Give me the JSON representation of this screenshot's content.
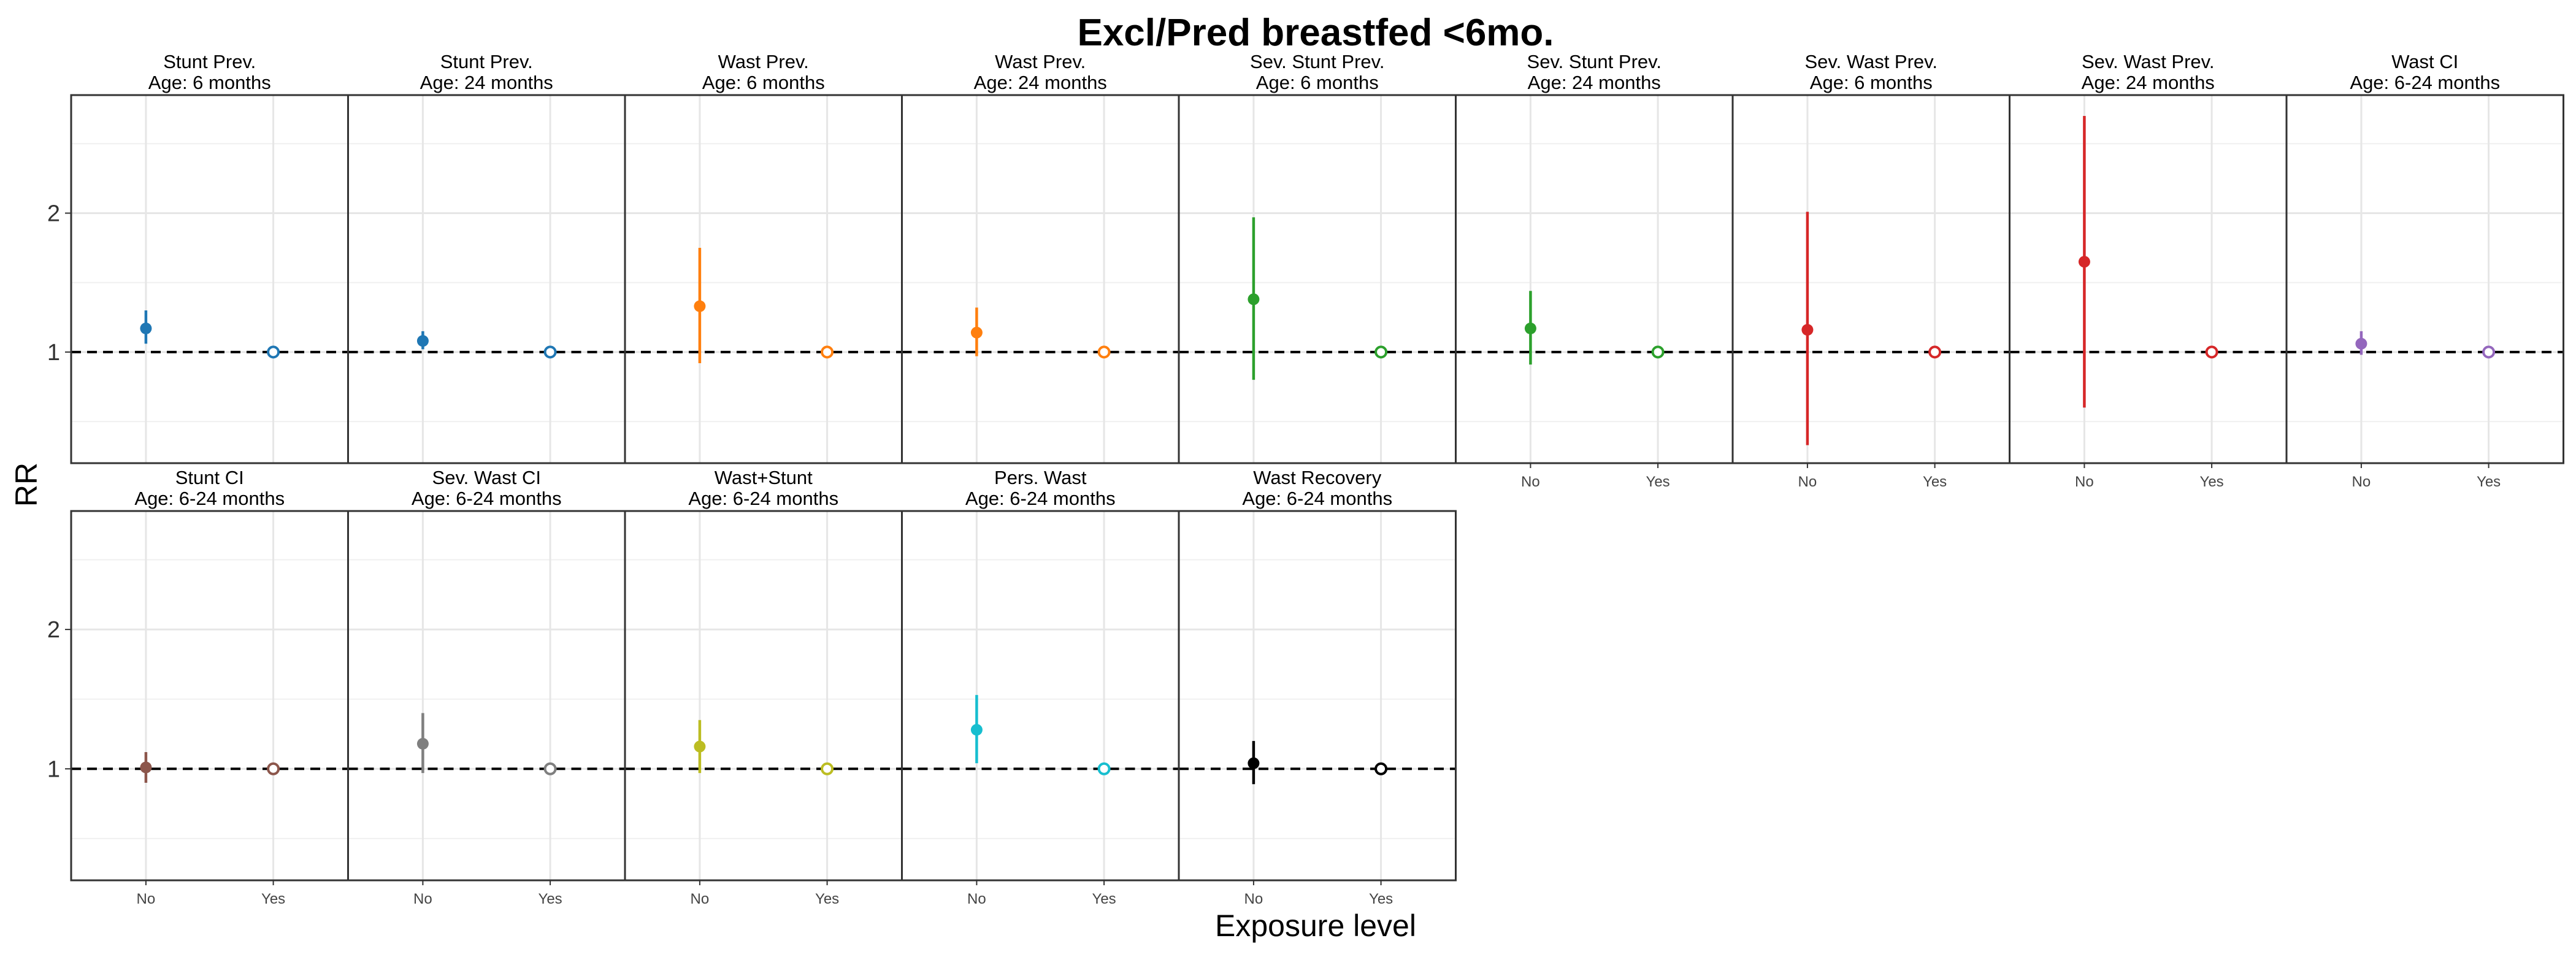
{
  "chart_data": {
    "type": "scatter",
    "title": "Excl/Pred breastfed <6mo.",
    "xlabel": "Exposure level",
    "ylabel": "RR",
    "x_categories": [
      "No",
      "Yes"
    ],
    "ylim": [
      0.2,
      2.85
    ],
    "y_ticks": [
      1,
      2
    ],
    "reference_line": 1,
    "grid": true,
    "panels": [
      {
        "strip": [
          "Stunt Prev.",
          "Age: 6 months"
        ],
        "color": "#1f77b4",
        "points": [
          {
            "x": "No",
            "y": 1.17,
            "lo": 1.06,
            "hi": 1.3
          },
          {
            "x": "Yes",
            "y": 1.0
          }
        ]
      },
      {
        "strip": [
          "Stunt Prev.",
          "Age: 24 months"
        ],
        "color": "#1f77b4",
        "points": [
          {
            "x": "No",
            "y": 1.08,
            "lo": 1.02,
            "hi": 1.15
          },
          {
            "x": "Yes",
            "y": 1.0
          }
        ]
      },
      {
        "strip": [
          "Wast Prev.",
          "Age: 6 months"
        ],
        "color": "#ff7f0e",
        "points": [
          {
            "x": "No",
            "y": 1.33,
            "lo": 0.92,
            "hi": 1.75
          },
          {
            "x": "Yes",
            "y": 1.0
          }
        ]
      },
      {
        "strip": [
          "Wast Prev.",
          "Age: 24 months"
        ],
        "color": "#ff7f0e",
        "points": [
          {
            "x": "No",
            "y": 1.14,
            "lo": 0.97,
            "hi": 1.32
          },
          {
            "x": "Yes",
            "y": 1.0
          }
        ]
      },
      {
        "strip": [
          "Sev. Stunt Prev.",
          "Age: 6 months"
        ],
        "color": "#2ca02c",
        "points": [
          {
            "x": "No",
            "y": 1.38,
            "lo": 0.8,
            "hi": 1.97
          },
          {
            "x": "Yes",
            "y": 1.0
          }
        ]
      },
      {
        "strip": [
          "Sev. Stunt Prev.",
          "Age: 24 months"
        ],
        "color": "#2ca02c",
        "points": [
          {
            "x": "No",
            "y": 1.17,
            "lo": 0.91,
            "hi": 1.44
          },
          {
            "x": "Yes",
            "y": 1.0
          }
        ]
      },
      {
        "strip": [
          "Sev. Wast Prev.",
          "Age: 6 months"
        ],
        "color": "#d62728",
        "points": [
          {
            "x": "No",
            "y": 1.16,
            "lo": 0.33,
            "hi": 2.01
          },
          {
            "x": "Yes",
            "y": 1.0
          }
        ]
      },
      {
        "strip": [
          "Sev. Wast Prev.",
          "Age: 24 months"
        ],
        "color": "#d62728",
        "points": [
          {
            "x": "No",
            "y": 1.65,
            "lo": 0.6,
            "hi": 2.7
          },
          {
            "x": "Yes",
            "y": 1.0
          }
        ]
      },
      {
        "strip": [
          "Wast CI",
          "Age: 6-24 months"
        ],
        "color": "#9467bd",
        "points": [
          {
            "x": "No",
            "y": 1.06,
            "lo": 0.98,
            "hi": 1.15
          },
          {
            "x": "Yes",
            "y": 1.0
          }
        ]
      },
      {
        "strip": [
          "Stunt CI",
          "Age: 6-24 months"
        ],
        "color": "#8c564b",
        "points": [
          {
            "x": "No",
            "y": 1.01,
            "lo": 0.9,
            "hi": 1.12
          },
          {
            "x": "Yes",
            "y": 1.0
          }
        ]
      },
      {
        "strip": [
          "Sev. Wast CI",
          "Age: 6-24 months"
        ],
        "color": "#7f7f7f",
        "points": [
          {
            "x": "No",
            "y": 1.18,
            "lo": 0.97,
            "hi": 1.4
          },
          {
            "x": "Yes",
            "y": 1.0
          }
        ]
      },
      {
        "strip": [
          "Wast+Stunt",
          "Age: 6-24 months"
        ],
        "color": "#bcbd22",
        "points": [
          {
            "x": "No",
            "y": 1.16,
            "lo": 0.97,
            "hi": 1.35
          },
          {
            "x": "Yes",
            "y": 1.0
          }
        ]
      },
      {
        "strip": [
          "Pers. Wast",
          "Age: 6-24 months"
        ],
        "color": "#17becf",
        "points": [
          {
            "x": "No",
            "y": 1.28,
            "lo": 1.04,
            "hi": 1.53
          },
          {
            "x": "Yes",
            "y": 1.0
          }
        ]
      },
      {
        "strip": [
          "Wast Recovery",
          "Age: 6-24 months"
        ],
        "color": "#000000",
        "points": [
          {
            "x": "No",
            "y": 1.04,
            "lo": 0.89,
            "hi": 1.2
          },
          {
            "x": "Yes",
            "y": 1.0
          }
        ]
      }
    ]
  }
}
